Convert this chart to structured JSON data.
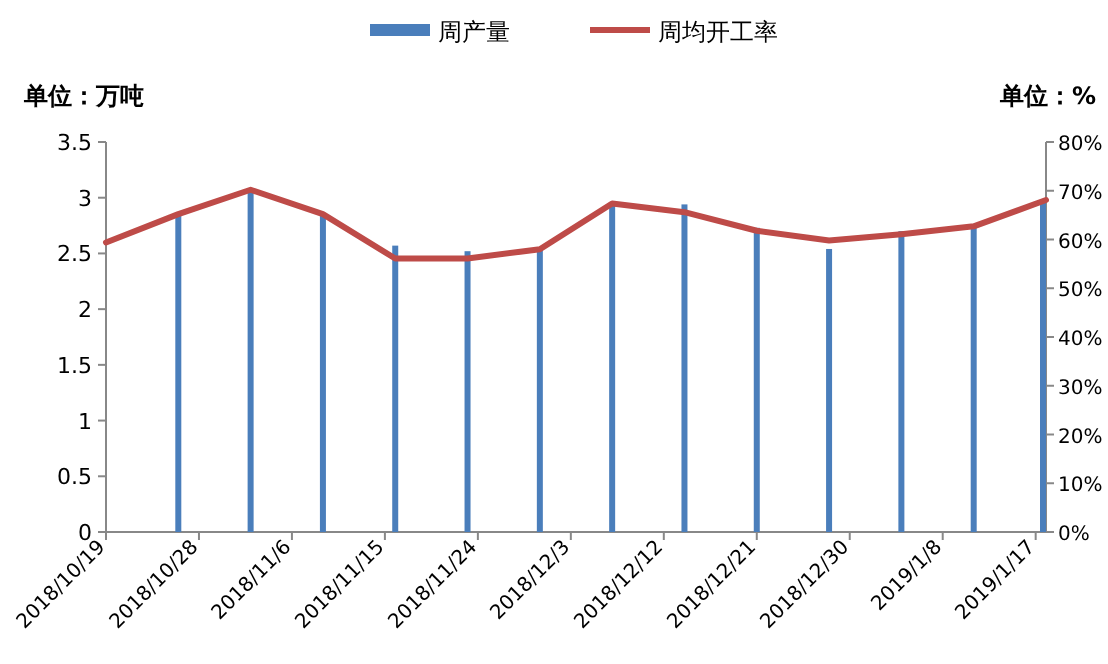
{
  "chart_data": {
    "type": "bar",
    "ylabel": "单位：万吨",
    "y2label": "单位：%",
    "x": [
      "2018-10-19",
      "2018-10-26",
      "2018-11-02",
      "2018-11-09",
      "2018-11-16",
      "2018-11-23",
      "2018-11-30",
      "2018-12-07",
      "2018-12-14",
      "2018-12-21",
      "2018-12-28",
      "2019-01-04",
      "2019-01-11",
      "2019-01-18"
    ],
    "series": [
      {
        "name": "周产量",
        "color": "#4a7ebb",
        "values": [
          null,
          2.86,
          3.05,
          2.85,
          2.57,
          2.52,
          2.54,
          2.94,
          2.94,
          2.73,
          2.54,
          2.7,
          2.74,
          2.97
        ]
      },
      {
        "name": "周均开工率",
        "type": "line",
        "axis": "y2",
        "color": "#be4b48",
        "values": [
          59.4,
          65.2,
          70.2,
          65.2,
          56.1,
          56.1,
          58.0,
          67.4,
          65.6,
          61.8,
          59.8,
          61.1,
          62.7,
          68.1
        ]
      }
    ],
    "xlim": [
      "2018-10-19",
      "2019-01-18"
    ],
    "xticks": [
      {
        "value": "2018-10-19",
        "label": "2018/10/19"
      },
      {
        "value": "2018-10-28",
        "label": "2018/10/28"
      },
      {
        "value": "2018-11-06",
        "label": "2018/11/6"
      },
      {
        "value": "2018-11-15",
        "label": "2018/11/15"
      },
      {
        "value": "2018-11-24",
        "label": "2018/11/24"
      },
      {
        "value": "2018-12-03",
        "label": "2018/12/3"
      },
      {
        "value": "2018-12-12",
        "label": "2018/12/12"
      },
      {
        "value": "2018-12-21",
        "label": "2018/12/21"
      },
      {
        "value": "2018-12-30",
        "label": "2018/12/30"
      },
      {
        "value": "2019-01-08",
        "label": "2019/1/8"
      },
      {
        "value": "2019-01-17",
        "label": "2019/1/17"
      }
    ],
    "ylim": [
      0,
      3.5
    ],
    "yticks": [
      0,
      0.5,
      1,
      1.5,
      2,
      2.5,
      3,
      3.5
    ],
    "y2lim": [
      0,
      80
    ],
    "y2ticks": [
      {
        "value": 0,
        "label": "0%"
      },
      {
        "value": 10,
        "label": "10%"
      },
      {
        "value": 20,
        "label": "20%"
      },
      {
        "value": 30,
        "label": "30%"
      },
      {
        "value": 40,
        "label": "40%"
      },
      {
        "value": 50,
        "label": "50%"
      },
      {
        "value": 60,
        "label": "60%"
      },
      {
        "value": 70,
        "label": "70%"
      },
      {
        "value": 80,
        "label": "80%"
      }
    ],
    "legend": "top",
    "grid": false
  }
}
